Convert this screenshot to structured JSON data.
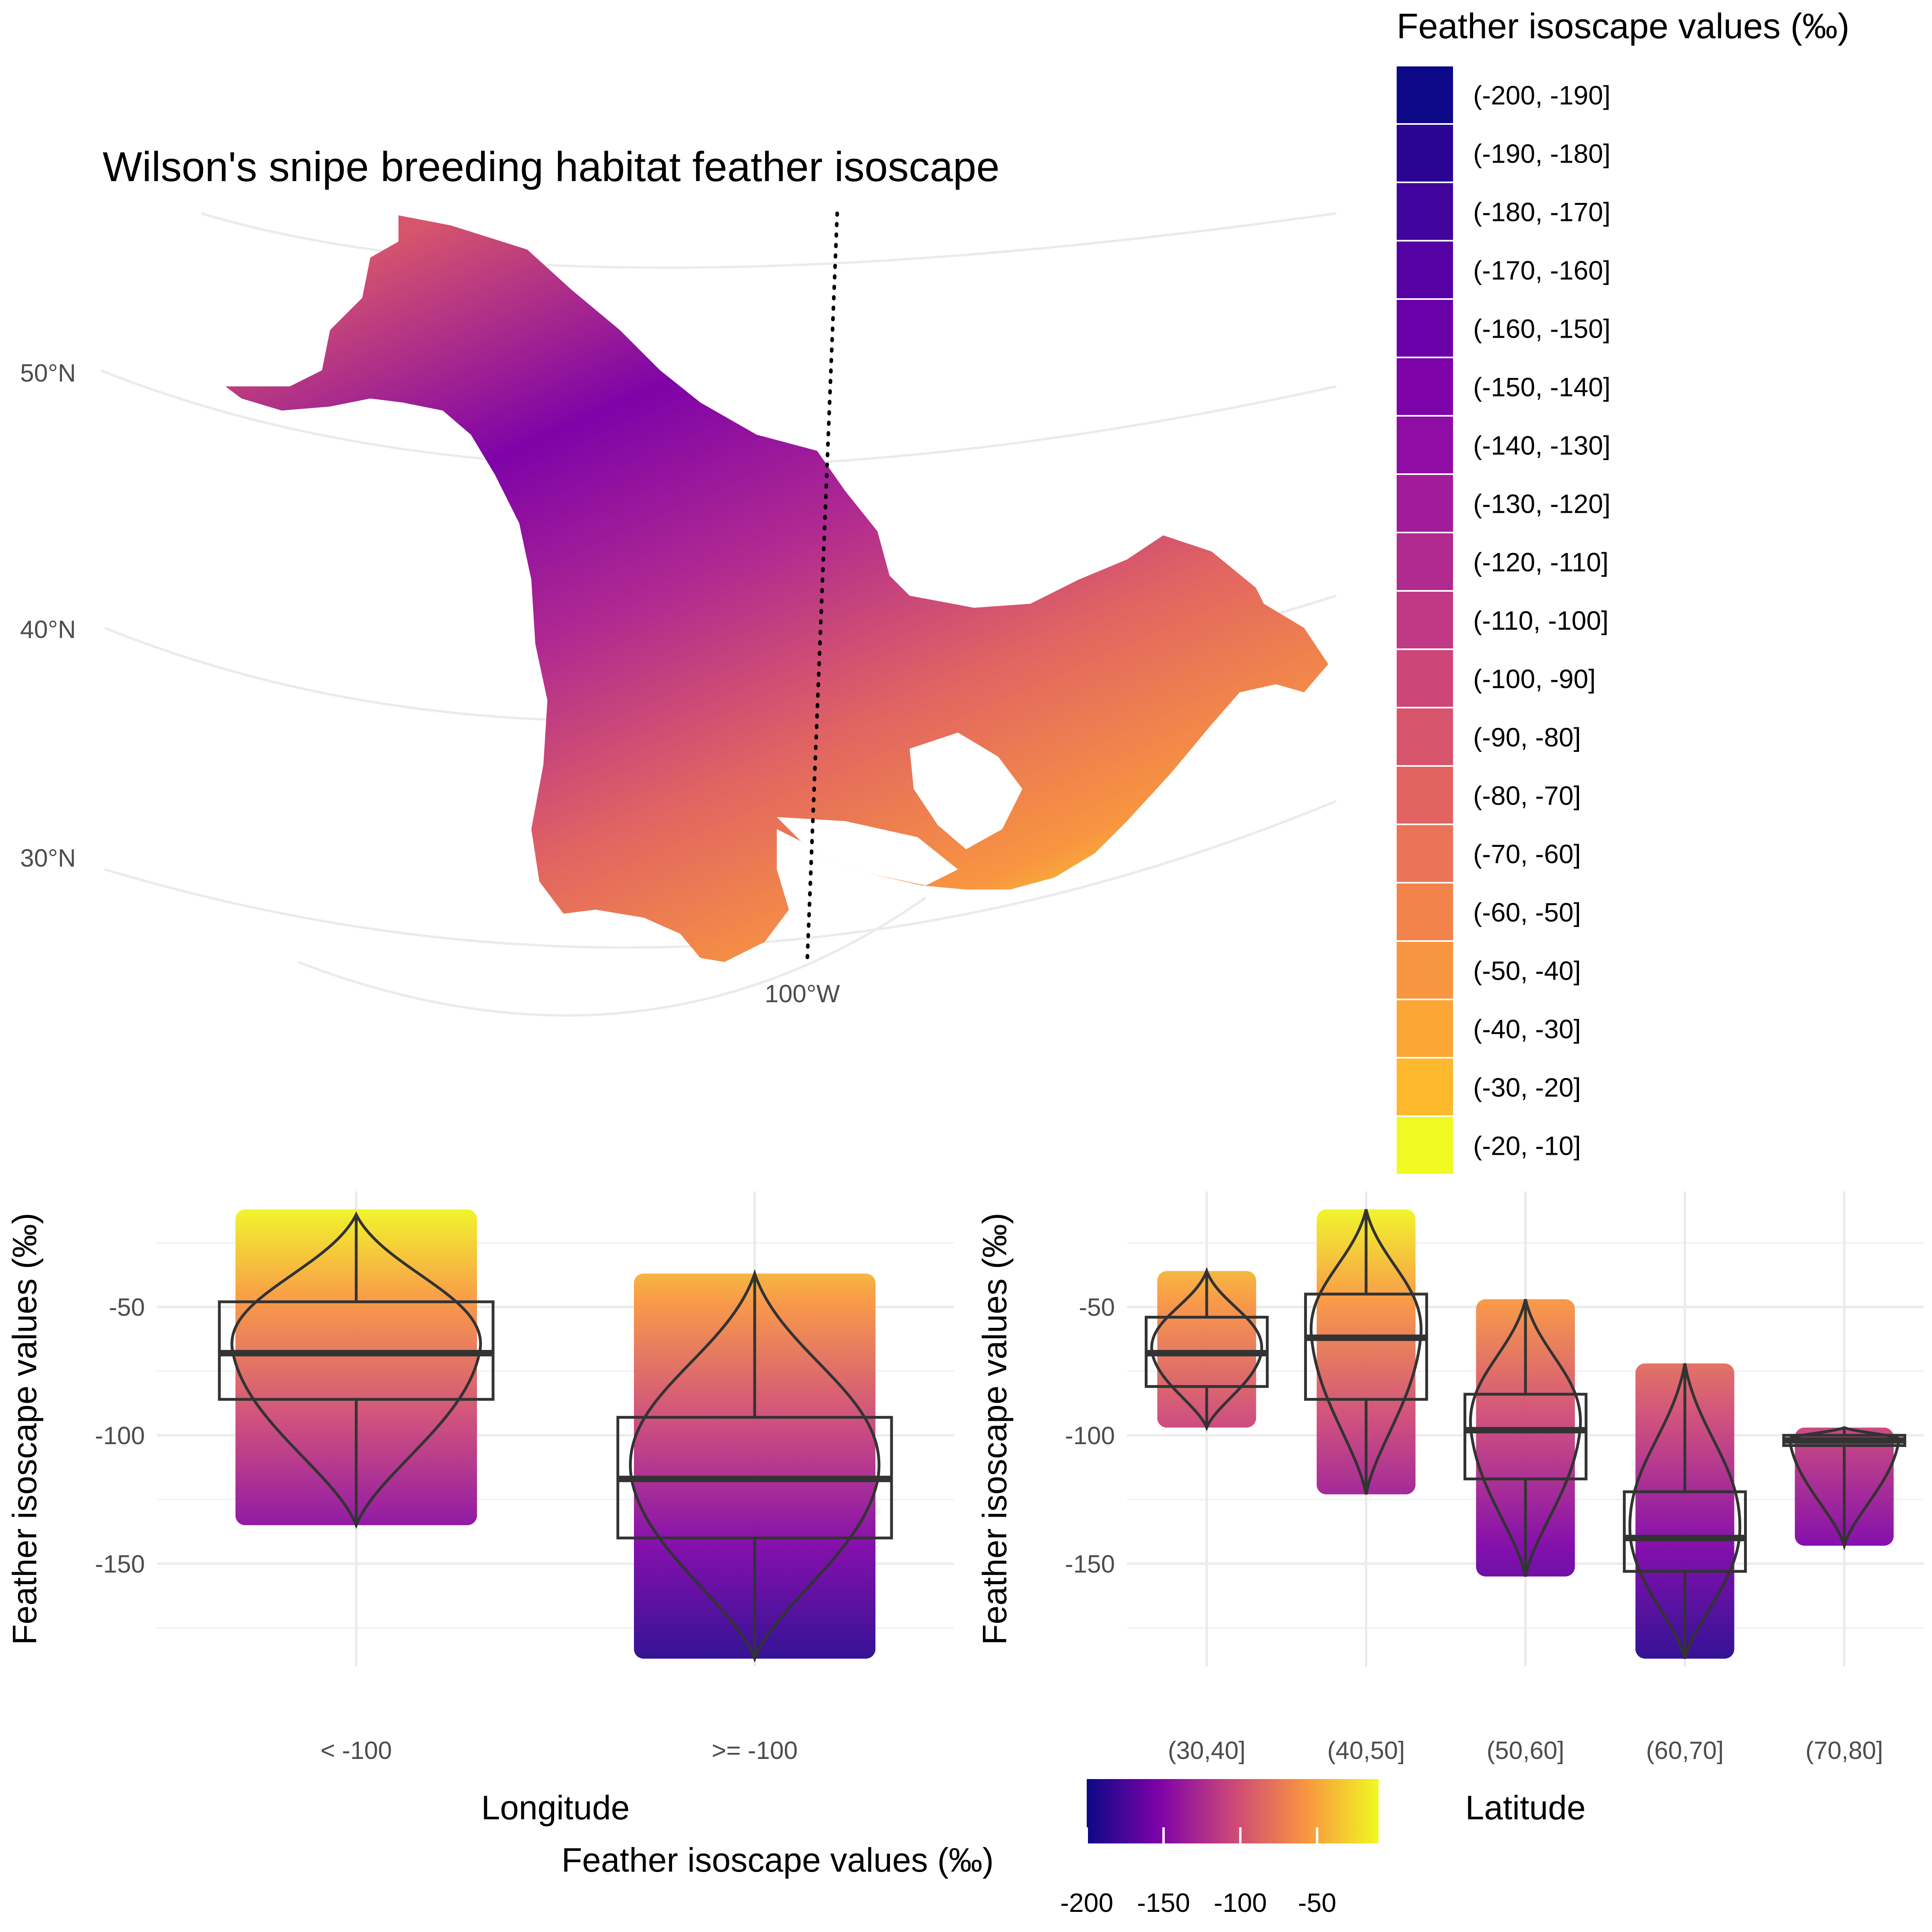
{
  "map": {
    "title": "Wilson's snipe breeding habitat feather isoscape",
    "lat_labels": [
      "50°N",
      "40°N",
      "30°N"
    ],
    "lon_label": "100°W"
  },
  "legend_bins": {
    "title": "Feather isoscape values (‰)",
    "items": [
      {
        "label": "(-200, -190]",
        "color": "#0d0887"
      },
      {
        "label": "(-190, -180]",
        "color": "#2a0593"
      },
      {
        "label": "(-180, -170]",
        "color": "#41049d"
      },
      {
        "label": "(-170, -160]",
        "color": "#5601a4"
      },
      {
        "label": "(-160, -150]",
        "color": "#6a00a8"
      },
      {
        "label": "(-150, -140]",
        "color": "#7e03a8"
      },
      {
        "label": "(-140, -130]",
        "color": "#8f0da4"
      },
      {
        "label": "(-130, -120]",
        "color": "#a11b9b"
      },
      {
        "label": "(-120, -110]",
        "color": "#b12a90"
      },
      {
        "label": "(-110, -100]",
        "color": "#bf3984"
      },
      {
        "label": "(-100, -90]",
        "color": "#cc4778"
      },
      {
        "label": "(-90, -80]",
        "color": "#d6556d"
      },
      {
        "label": "(-80, -70]",
        "color": "#e16462"
      },
      {
        "label": "(-70, -60]",
        "color": "#ea7457"
      },
      {
        "label": "(-60, -50]",
        "color": "#f2844b"
      },
      {
        "label": "(-50, -40]",
        "color": "#f89540"
      },
      {
        "label": "(-40, -30]",
        "color": "#fca636"
      },
      {
        "label": "(-30, -20]",
        "color": "#fdb82c"
      },
      {
        "label": "(-20, -10]",
        "color": "#f0f921"
      }
    ]
  },
  "legend_gradient": {
    "title": "Feather isoscape values (‰)",
    "ticks": [
      "-200",
      "-150",
      "-100",
      "-50"
    ],
    "range": [
      -200,
      -10
    ]
  },
  "chart_data": [
    {
      "type": "box",
      "xlabel": "Longitude",
      "ylabel": "Feather isoscape values (‰)",
      "ylim": [
        -190,
        -5
      ],
      "yticks": [
        -50,
        -100,
        -150
      ],
      "grid": true,
      "categories": [
        "< -100",
        ">= -100"
      ],
      "groups": [
        {
          "category": "< -100",
          "min": -135,
          "q1": -86,
          "median": -68,
          "q3": -48,
          "max": -14,
          "lowest_point": -135,
          "highest_point": -12
        },
        {
          "category": ">= -100",
          "min": -187,
          "q1": -140,
          "median": -117,
          "q3": -93,
          "max": -37,
          "lowest_point": -187,
          "highest_point": -37
        }
      ]
    },
    {
      "type": "box",
      "xlabel": "Latitude",
      "ylabel": "Feather isoscape values (‰)",
      "ylim": [
        -190,
        -5
      ],
      "yticks": [
        -50,
        -100,
        -150
      ],
      "grid": true,
      "categories": [
        "(30,40]",
        "(40,50]",
        "(50,60]",
        "(60,70]",
        "(70,80]"
      ],
      "groups": [
        {
          "category": "(30,40]",
          "min": -97,
          "q1": -81,
          "median": -68,
          "q3": -54,
          "max": -36,
          "lowest_point": -97,
          "highest_point": -36
        },
        {
          "category": "(40,50]",
          "min": -123,
          "q1": -86,
          "median": -62,
          "q3": -45,
          "max": -12,
          "lowest_point": -123,
          "highest_point": -12
        },
        {
          "category": "(50,60]",
          "min": -155,
          "q1": -117,
          "median": -98,
          "q3": -84,
          "max": -47,
          "lowest_point": -155,
          "highest_point": -47
        },
        {
          "category": "(60,70]",
          "min": -187,
          "q1": -153,
          "median": -140,
          "q3": -122,
          "max": -72,
          "lowest_point": -187,
          "highest_point": -72
        },
        {
          "category": "(70,80]",
          "min": -143,
          "q1": -104,
          "median": -102,
          "q3": -100,
          "max": -97,
          "lowest_point": -143,
          "highest_point": -97
        }
      ]
    }
  ]
}
